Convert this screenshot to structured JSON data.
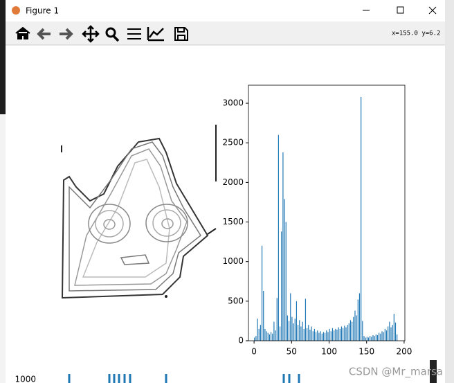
{
  "window": {
    "title": "Figure 1",
    "coords": "x=155.0 y=6.2",
    "background_label": "1000",
    "watermark": "CSDN @Mr_marsa"
  },
  "chart_data": {
    "type": "histogram",
    "color": "#1f77b4",
    "bins": [
      0,
      2,
      4,
      6,
      8,
      10,
      12,
      14,
      16,
      18,
      20,
      22,
      24,
      26,
      28,
      30,
      32,
      34,
      36,
      38,
      40,
      42,
      44,
      46,
      48,
      50,
      52,
      54,
      56,
      58,
      60,
      62,
      64,
      66,
      68,
      70,
      72,
      74,
      76,
      78,
      80,
      82,
      84,
      86,
      88,
      90,
      92,
      94,
      96,
      98,
      100,
      102,
      104,
      106,
      108,
      110,
      112,
      114,
      116,
      118,
      120,
      122,
      124,
      126,
      128,
      130,
      132,
      134,
      136,
      138,
      140,
      142,
      144,
      146,
      148,
      150,
      152,
      154,
      156,
      158,
      160,
      162,
      164,
      166,
      168,
      170,
      172,
      174,
      176,
      178,
      180,
      182,
      184,
      186,
      188,
      190,
      192
    ],
    "values": [
      40,
      60,
      280,
      150,
      200,
      1200,
      630,
      150,
      120,
      100,
      80,
      110,
      90,
      240,
      130,
      540,
      2600,
      180,
      1380,
      2380,
      1790,
      1500,
      320,
      250,
      600,
      300,
      220,
      280,
      500,
      200,
      260,
      180,
      240,
      150,
      530,
      160,
      200,
      140,
      180,
      120,
      150,
      110,
      130,
      100,
      120,
      90,
      110,
      100,
      130,
      110,
      150,
      120,
      160,
      130,
      150,
      140,
      170,
      150,
      180,
      160,
      190,
      170,
      200,
      220,
      260,
      240,
      300,
      380,
      320,
      520,
      600,
      3080,
      250,
      60,
      40,
      50,
      40,
      60,
      50,
      70,
      60,
      80,
      70,
      100,
      90,
      120,
      110,
      150,
      130,
      180,
      240,
      170,
      200,
      340,
      230,
      80
    ],
    "xlim": [
      -7.5,
      201
    ],
    "ylim": [
      0,
      3228
    ],
    "xticks": [
      0,
      50,
      100,
      150,
      200
    ],
    "yticks": [
      0,
      500,
      1000,
      1500,
      2000,
      2500,
      3000
    ]
  }
}
